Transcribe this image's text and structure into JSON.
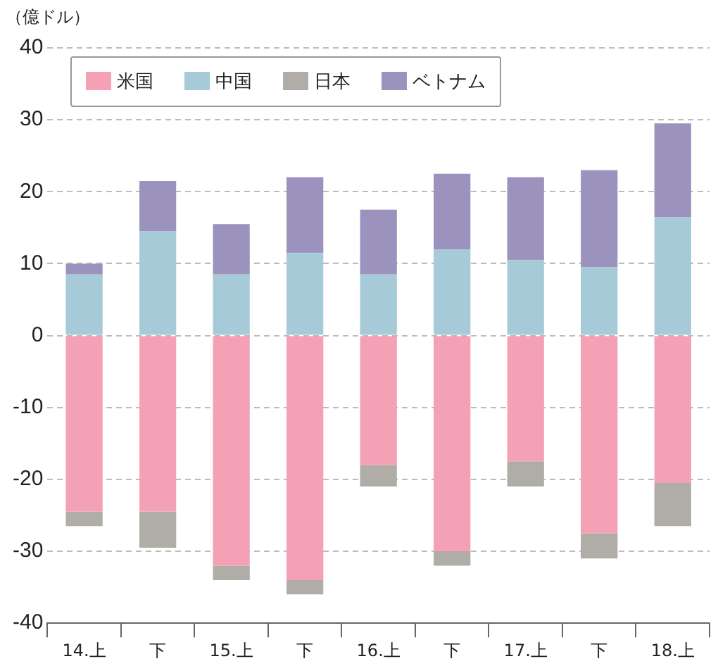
{
  "chart_data": {
    "type": "bar",
    "ylabel": "（億ドル）",
    "stacked": true,
    "categories": [
      "14.上",
      "下",
      "15.上",
      "下",
      "16.上",
      "下",
      "17.上",
      "下",
      "18.上"
    ],
    "series": [
      {
        "name": "米国",
        "color": "#f4a0b5",
        "values": [
          -24.5,
          -24.5,
          -32,
          -34,
          -18,
          -30,
          -17.5,
          -27.5,
          -20.5
        ]
      },
      {
        "name": "中国",
        "color": "#a6cad8",
        "values": [
          8.5,
          14.5,
          8.5,
          11.5,
          8.5,
          12,
          10.5,
          9.5,
          16.5
        ]
      },
      {
        "name": "日本",
        "color": "#b0aca6",
        "values": [
          -2,
          -5,
          -2,
          -2,
          -3,
          -2,
          -3.5,
          -3.5,
          -6
        ]
      },
      {
        "name": "ベトナム",
        "color": "#9b93bd",
        "values": [
          1.5,
          7,
          7,
          10.5,
          9,
          10.5,
          11.5,
          13.5,
          13
        ]
      }
    ],
    "ylim": [
      -40,
      40
    ],
    "yticks": [
      -40,
      -30,
      -20,
      -10,
      0,
      10,
      20,
      30,
      40
    ],
    "grid": "y",
    "legend": "top left"
  }
}
